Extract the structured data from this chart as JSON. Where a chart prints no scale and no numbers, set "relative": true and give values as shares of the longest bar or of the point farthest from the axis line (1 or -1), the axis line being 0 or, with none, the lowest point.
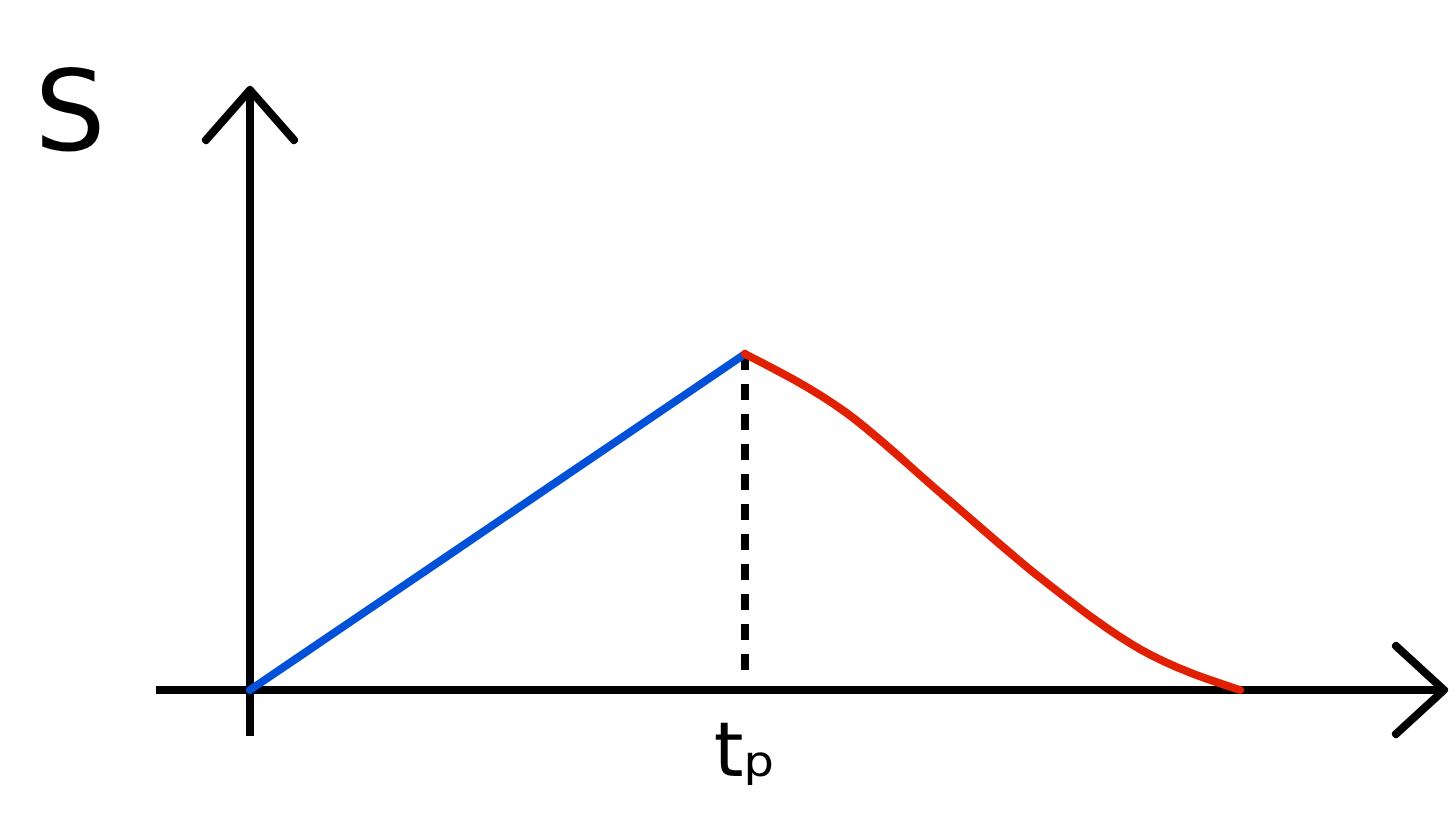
{
  "chart_data": {
    "type": "line",
    "relative": true,
    "ylabel": "S",
    "categories": [
      null,
      null,
      null,
      null,
      null,
      null,
      null,
      null,
      null,
      null,
      null
    ],
    "annotations": [
      "tₚ"
    ],
    "series": [
      {
        "color": "#0050d8",
        "values": [
          0,
          0.2,
          0.4,
          0.6,
          0.8,
          1,
          null,
          null,
          null,
          null,
          null
        ]
      },
      {
        "color": "#e02000",
        "values": [
          null,
          null,
          null,
          null,
          null,
          1,
          0.83,
          0.58,
          0.33,
          0.12,
          0
        ]
      }
    ]
  }
}
